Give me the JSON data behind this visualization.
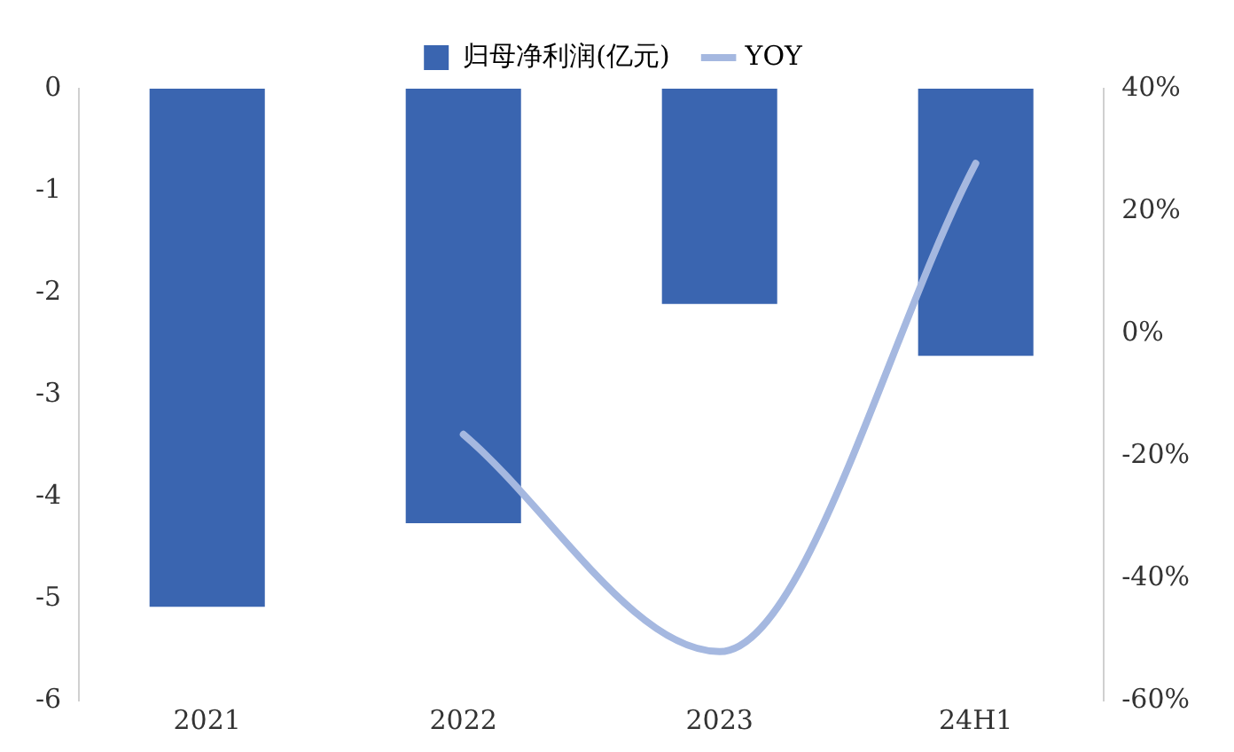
{
  "chart_data": {
    "type": "bar",
    "categories": [
      "2021",
      "2022",
      "2023",
      "24H1"
    ],
    "series": [
      {
        "name": "归母净利润(亿元)",
        "color": "#3a65b0",
        "values": [
          -5.08,
          -4.26,
          -2.11,
          -2.62
        ]
      },
      {
        "name": "YOY",
        "type": "line",
        "axis": "y2",
        "color": "#a5b8e0",
        "values": [
          null,
          -16.5,
          -52,
          27.8
        ]
      }
    ],
    "ylim": [
      -6,
      0
    ],
    "yticks": [
      -6,
      -5,
      -4,
      -3,
      -2,
      -1,
      0
    ],
    "y2lim": [
      -60,
      40
    ],
    "y2ticks": [
      {
        "value": -60,
        "label": "-60%"
      },
      {
        "value": -40,
        "label": "-40%"
      },
      {
        "value": -20,
        "label": "-20%"
      },
      {
        "value": 0,
        "label": "0%"
      },
      {
        "value": 20,
        "label": "20%"
      },
      {
        "value": 40,
        "label": "40%"
      }
    ],
    "grid": false,
    "legend": "top",
    "marker": "none"
  }
}
